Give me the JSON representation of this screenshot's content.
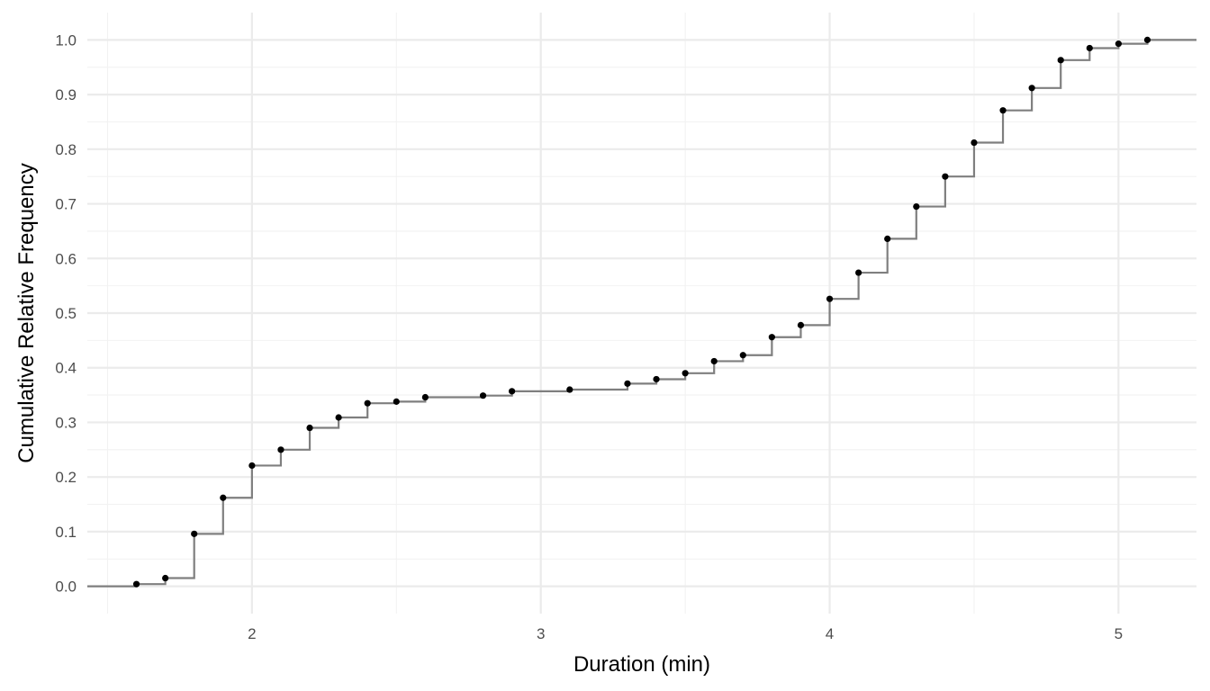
{
  "chart_data": {
    "type": "step",
    "xlabel": "Duration (min)",
    "ylabel": "Cumulative Relative Frequency",
    "xlim": [
      1.43,
      5.27
    ],
    "ylim": [
      -0.05,
      1.05
    ],
    "x_ticks": [
      {
        "value": 2,
        "label": "2"
      },
      {
        "value": 3,
        "label": "3"
      },
      {
        "value": 4,
        "label": "4"
      },
      {
        "value": 5,
        "label": "5"
      }
    ],
    "y_ticks": [
      {
        "value": 0.0,
        "label": "0.0"
      },
      {
        "value": 0.1,
        "label": "0.1"
      },
      {
        "value": 0.2,
        "label": "0.2"
      },
      {
        "value": 0.3,
        "label": "0.3"
      },
      {
        "value": 0.4,
        "label": "0.4"
      },
      {
        "value": 0.5,
        "label": "0.5"
      },
      {
        "value": 0.6,
        "label": "0.6"
      },
      {
        "value": 0.7,
        "label": "0.7"
      },
      {
        "value": 0.8,
        "label": "0.8"
      },
      {
        "value": 0.9,
        "label": "0.9"
      },
      {
        "value": 1.0,
        "label": "1.0"
      }
    ],
    "grid": true,
    "line_color": "#7f7f7f",
    "point_color": "#000000",
    "points": [
      {
        "x": 1.6,
        "y": 0.004
      },
      {
        "x": 1.7,
        "y": 0.015
      },
      {
        "x": 1.8,
        "y": 0.096
      },
      {
        "x": 1.9,
        "y": 0.162
      },
      {
        "x": 2.0,
        "y": 0.221
      },
      {
        "x": 2.1,
        "y": 0.25
      },
      {
        "x": 2.2,
        "y": 0.29
      },
      {
        "x": 2.3,
        "y": 0.309
      },
      {
        "x": 2.4,
        "y": 0.335
      },
      {
        "x": 2.5,
        "y": 0.338
      },
      {
        "x": 2.6,
        "y": 0.346
      },
      {
        "x": 2.8,
        "y": 0.349
      },
      {
        "x": 2.9,
        "y": 0.357
      },
      {
        "x": 3.1,
        "y": 0.36
      },
      {
        "x": 3.3,
        "y": 0.371
      },
      {
        "x": 3.4,
        "y": 0.379
      },
      {
        "x": 3.5,
        "y": 0.39
      },
      {
        "x": 3.6,
        "y": 0.412
      },
      {
        "x": 3.7,
        "y": 0.423
      },
      {
        "x": 3.8,
        "y": 0.456
      },
      {
        "x": 3.9,
        "y": 0.478
      },
      {
        "x": 4.0,
        "y": 0.526
      },
      {
        "x": 4.1,
        "y": 0.574
      },
      {
        "x": 4.2,
        "y": 0.636
      },
      {
        "x": 4.3,
        "y": 0.695
      },
      {
        "x": 4.4,
        "y": 0.75
      },
      {
        "x": 4.5,
        "y": 0.812
      },
      {
        "x": 4.6,
        "y": 0.871
      },
      {
        "x": 4.7,
        "y": 0.912
      },
      {
        "x": 4.8,
        "y": 0.963
      },
      {
        "x": 4.9,
        "y": 0.985
      },
      {
        "x": 5.0,
        "y": 0.993
      },
      {
        "x": 5.1,
        "y": 1.0
      }
    ]
  }
}
